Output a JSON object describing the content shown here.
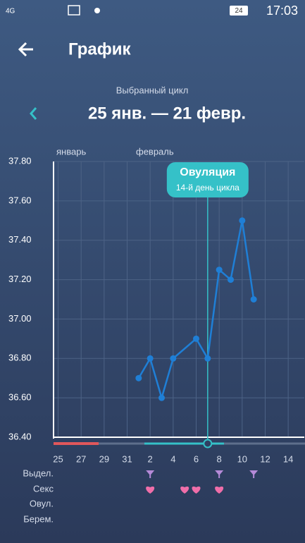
{
  "status_bar": {
    "network": "4G",
    "battery": "24",
    "time": "17:03"
  },
  "header": {
    "title": "График",
    "cycle_caption": "Выбранный цикл",
    "cycle_range": "25 янв. — 21 февр."
  },
  "chart_data": {
    "type": "line",
    "months": [
      "январь",
      "февраль"
    ],
    "x": [
      1,
      2,
      3,
      4,
      6,
      7,
      8,
      9,
      10,
      11
    ],
    "series": [
      {
        "color": "#1f7fd6",
        "values": [
          36.7,
          36.8,
          36.6,
          36.8,
          36.9,
          36.8,
          37.25,
          37.2,
          37.5,
          37.1
        ]
      }
    ],
    "xlim": [
      -6.4,
      15.4
    ],
    "xticks": [
      {
        "value": -6,
        "label": "25"
      },
      {
        "value": -4,
        "label": "27"
      },
      {
        "value": -2,
        "label": "29"
      },
      {
        "value": 0,
        "label": "31"
      },
      2,
      4,
      6,
      8,
      10,
      12,
      14
    ],
    "ylim": [
      36.4,
      37.8
    ],
    "yticks": [
      {
        "value": 36.4,
        "label": "36.40"
      },
      {
        "value": 36.6,
        "label": "36.60"
      },
      {
        "value": 36.8,
        "label": "36.80"
      },
      {
        "value": 37.0,
        "label": "37.00"
      },
      {
        "value": 37.2,
        "label": "37.20"
      },
      {
        "value": 37.4,
        "label": "37.40"
      },
      {
        "value": 37.6,
        "label": "37.60"
      },
      {
        "value": 37.8,
        "label": "37.80"
      }
    ],
    "grid": true,
    "ovulation": {
      "x": 7,
      "title": "Овуляция",
      "subtitle": "14-й день цикла"
    },
    "row_labels": [
      "Выдел.",
      "Секс",
      "Овул.",
      "Берем."
    ],
    "discharge_days": [
      2,
      8,
      11
    ],
    "sex_days": [
      2,
      5,
      6,
      8
    ]
  }
}
